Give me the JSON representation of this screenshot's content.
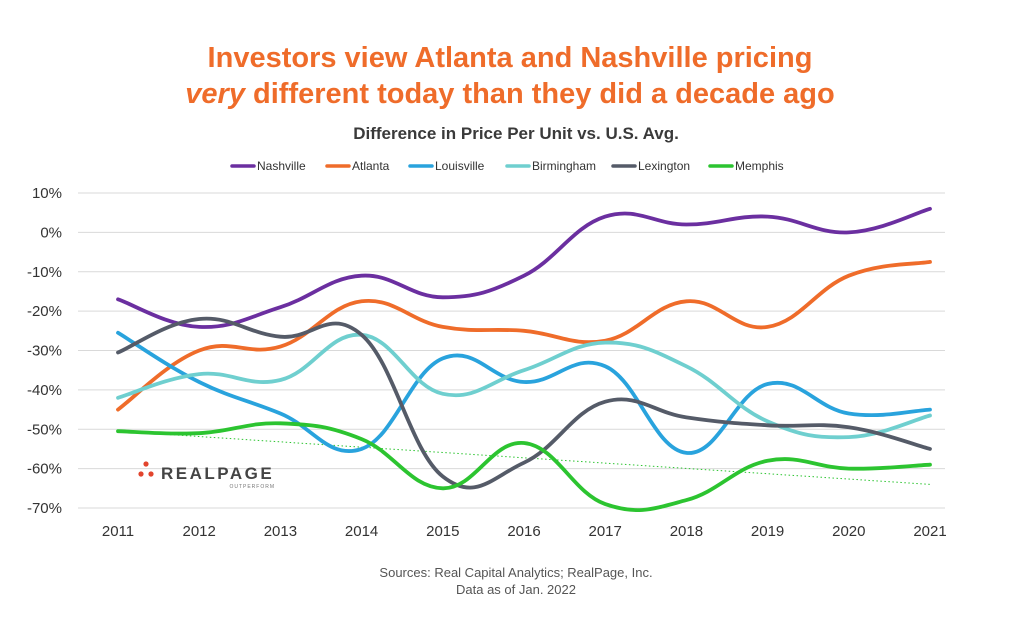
{
  "title_line1": "Investors view Atlanta and Nashville pricing",
  "title_line2_em": "very",
  "title_line2_rest": " different today than they did a decade ago",
  "logo": {
    "name": "REALPAGE",
    "tagline": "OUTPERFORM"
  },
  "sources": {
    "line1": "Sources: Real Capital Analytics; RealPage, Inc.",
    "line2": "Data as of Jan. 2022"
  },
  "chart_data": {
    "type": "line",
    "title": "Difference in Price Per Unit vs. U.S. Avg.",
    "x": [
      "2011",
      "2012",
      "2013",
      "2014",
      "2015",
      "2016",
      "2017",
      "2018",
      "2019",
      "2020",
      "2021"
    ],
    "ylim": [
      -70,
      10
    ],
    "yticks": [
      10,
      0,
      -10,
      -20,
      -30,
      -40,
      -50,
      -60,
      -70
    ],
    "ytick_labels": [
      "10%",
      "0%",
      "-10%",
      "-20%",
      "-30%",
      "-40%",
      "-50%",
      "-60%",
      "-70%"
    ],
    "grid": true,
    "legend_position": "top",
    "series": [
      {
        "name": "Nashville",
        "color": "#6b2fa0",
        "values": [
          -17,
          -24,
          -19,
          -11,
          -16.5,
          -11,
          4,
          2,
          4,
          0,
          6
        ]
      },
      {
        "name": "Atlanta",
        "color": "#ef6c2a",
        "values": [
          -45,
          -30,
          -29,
          -17.5,
          -24,
          -25,
          -27.5,
          -17.5,
          -24,
          -11,
          -7.5
        ]
      },
      {
        "name": "Louisville",
        "color": "#29a3dd",
        "values": [
          -25.5,
          -38,
          -46,
          -55,
          -32,
          -38,
          -34,
          -56,
          -38.5,
          -46,
          -45
        ]
      },
      {
        "name": "Birmingham",
        "color": "#6fcfcf",
        "values": [
          -42,
          -36,
          -37.5,
          -26,
          -41,
          -35,
          -28,
          -34,
          -48,
          -52,
          -46.5
        ]
      },
      {
        "name": "Lexington",
        "color": "#555b68",
        "values": [
          -30.5,
          -22,
          -26.5,
          -26,
          -62,
          -58.5,
          -43,
          -47,
          -49,
          -49.5,
          -55
        ]
      },
      {
        "name": "Memphis",
        "color": "#2cc430",
        "values": [
          -50.5,
          -51,
          -48.5,
          -52.5,
          -65,
          -53.5,
          -69,
          -68,
          -58,
          -60,
          -59
        ]
      }
    ],
    "trendline": {
      "series": "Memphis",
      "color": "#2cc430",
      "start": -50.5,
      "end": -64
    }
  }
}
